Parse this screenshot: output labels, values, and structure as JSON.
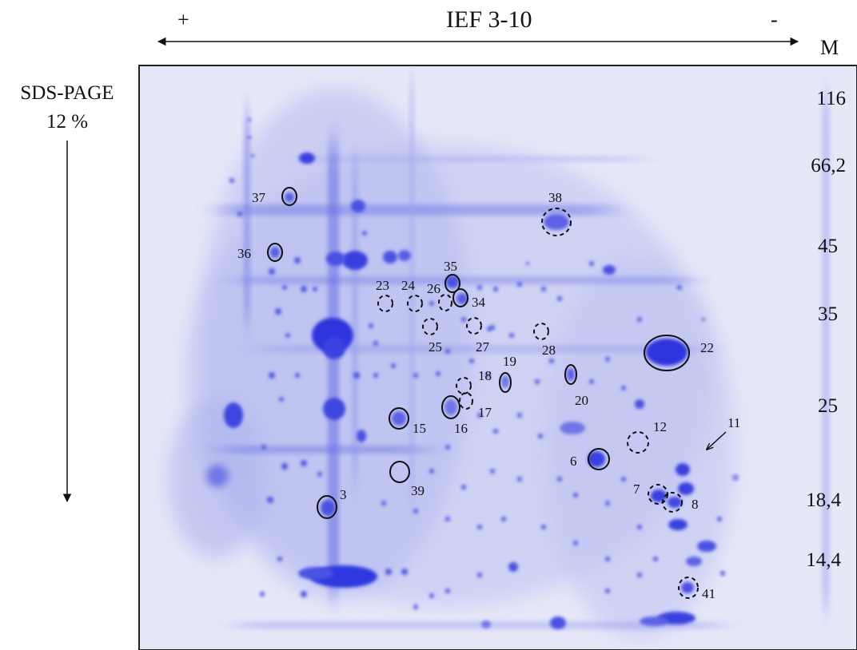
{
  "header": {
    "plus": "+",
    "title": "IEF 3-10",
    "minus": "-",
    "marker_col": "M"
  },
  "left_axis": {
    "line1": "SDS-PAGE",
    "line2": "12 %"
  },
  "markers": [
    "116",
    "66,2",
    "45",
    "35",
    "25",
    "18,4",
    "14,4"
  ],
  "spot_labels": {
    "s37": "37",
    "s38": "38",
    "s36": "36",
    "s35": "35",
    "s23": "23",
    "s24": "24",
    "s26": "26",
    "s34": "34",
    "s25": "25",
    "s27": "27",
    "s28": "28",
    "s22": "22",
    "s19": "19",
    "s18": "18",
    "s20": "20",
    "s17": "17",
    "s15": "15",
    "s16": "16",
    "s11": "11",
    "s12": "12",
    "s6": "6",
    "s39": "39",
    "s3": "3",
    "s7": "7",
    "s8": "8",
    "s41": "41"
  },
  "colors": {
    "gel_bg": "#e5e7f8",
    "stain": "#2d35dd",
    "outline": "#111111"
  }
}
